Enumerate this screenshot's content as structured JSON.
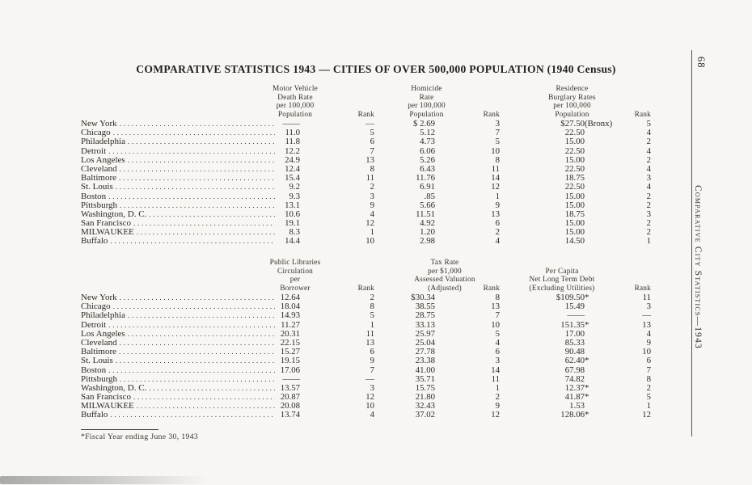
{
  "page": {
    "title": "COMPARATIVE STATISTICS 1943 — CITIES OF OVER 500,000 POPULATION (1940 Census)",
    "page_number": "68",
    "side_label": "Comparative City Statistics—1943",
    "footnote": "*Fiscal Year ending June 30, 1943"
  },
  "tables": [
    {
      "headers": [
        {
          "id": "val1",
          "lines": [
            "Motor Vehicle",
            "Death Rate",
            "per 100,000",
            "Population"
          ]
        },
        {
          "id": "rank1",
          "lines": [
            "Rank"
          ]
        },
        {
          "id": "val2",
          "lines": [
            "Homicide",
            "Rate",
            "per 100,000",
            "Population"
          ]
        },
        {
          "id": "rank2",
          "lines": [
            "Rank"
          ]
        },
        {
          "id": "val3",
          "lines": [
            "Residence",
            "Burglary Rates",
            "per 100,000",
            "Population"
          ]
        },
        {
          "id": "rank3",
          "lines": [
            "Rank"
          ]
        }
      ],
      "rows": [
        {
          "city": "New York",
          "v1": "——",
          "r1": "—",
          "v2": "$ 2.69",
          "r2": "3",
          "v3": "$27.50",
          "v3sfx": "(Bronx)",
          "r3": "5"
        },
        {
          "city": "Chicago",
          "v1": "11.0",
          "r1": "5",
          "v2": "5.12",
          "r2": "7",
          "v3": "22.50",
          "v3sfx": "",
          "r3": "4"
        },
        {
          "city": "Philadelphia",
          "v1": "11.8",
          "r1": "6",
          "v2": "4.73",
          "r2": "5",
          "v3": "15.00",
          "v3sfx": "",
          "r3": "2"
        },
        {
          "city": "Detroit",
          "v1": "12.2",
          "r1": "7",
          "v2": "6.06",
          "r2": "10",
          "v3": "22.50",
          "v3sfx": "",
          "r3": "4"
        },
        {
          "city": "Los Angeles",
          "v1": "24.9",
          "r1": "13",
          "v2": "5.26",
          "r2": "8",
          "v3": "15.00",
          "v3sfx": "",
          "r3": "2"
        },
        {
          "city": "Cleveland",
          "v1": "12.4",
          "r1": "8",
          "v2": "6.43",
          "r2": "11",
          "v3": "22.50",
          "v3sfx": "",
          "r3": "4"
        },
        {
          "city": "Baltimore",
          "v1": "15.4",
          "r1": "11",
          "v2": "11.76",
          "r2": "14",
          "v3": "18.75",
          "v3sfx": "",
          "r3": "3"
        },
        {
          "city": "St. Louis",
          "v1": "9.2",
          "r1": "2",
          "v2": "6.91",
          "r2": "12",
          "v3": "22.50",
          "v3sfx": "",
          "r3": "4"
        },
        {
          "city": "Boston",
          "v1": "9.3",
          "r1": "3",
          "v2": ".85",
          "r2": "1",
          "v3": "15.00",
          "v3sfx": "",
          "r3": "2"
        },
        {
          "city": "Pittsburgh",
          "v1": "13.1",
          "r1": "9",
          "v2": "5.66",
          "r2": "9",
          "v3": "15.00",
          "v3sfx": "",
          "r3": "2"
        },
        {
          "city": "Washington, D. C.",
          "v1": "10.6",
          "r1": "4",
          "v2": "11.51",
          "r2": "13",
          "v3": "18.75",
          "v3sfx": "",
          "r3": "3"
        },
        {
          "city": "San Francisco",
          "v1": "19.1",
          "r1": "12",
          "v2": "4.92",
          "r2": "6",
          "v3": "15.00",
          "v3sfx": "",
          "r3": "2"
        },
        {
          "city": "MILWAUKEE",
          "v1": "8.3",
          "r1": "1",
          "v2": "1.20",
          "r2": "2",
          "v3": "15.00",
          "v3sfx": "",
          "r3": "2"
        },
        {
          "city": "Buffalo",
          "v1": "14.4",
          "r1": "10",
          "v2": "2.98",
          "r2": "4",
          "v3": "14.50",
          "v3sfx": "",
          "r3": "1"
        }
      ]
    },
    {
      "headers": [
        {
          "id": "val1",
          "lines": [
            "Public Libraries",
            "Circulation",
            "per",
            "Borrower"
          ]
        },
        {
          "id": "rank1",
          "lines": [
            "Rank"
          ]
        },
        {
          "id": "val2",
          "lines": [
            "Tax Rate",
            "per $1,000",
            "Assessed Valuation",
            "(Adjusted)"
          ]
        },
        {
          "id": "rank2",
          "lines": [
            "Rank"
          ]
        },
        {
          "id": "val3",
          "lines": [
            "Per Capita",
            "Net Long Term Debt",
            "(Excluding Utilities)"
          ]
        },
        {
          "id": "rank3",
          "lines": [
            "Rank"
          ]
        }
      ],
      "rows": [
        {
          "city": "New York",
          "v1": "12.64",
          "r1": "2",
          "v2": "$30.34",
          "r2": "8",
          "v3": "$109.50",
          "v3sfx": "*",
          "r3": "11"
        },
        {
          "city": "Chicago",
          "v1": "18.04",
          "r1": "8",
          "v2": "38.55",
          "r2": "13",
          "v3": "15.49",
          "v3sfx": "",
          "r3": "3"
        },
        {
          "city": "Philadelphia",
          "v1": "14.93",
          "r1": "5",
          "v2": "28.75",
          "r2": "7",
          "v3": "——",
          "v3sfx": "",
          "r3": "—"
        },
        {
          "city": "Detroit",
          "v1": "11.27",
          "r1": "1",
          "v2": "33.13",
          "r2": "10",
          "v3": "151.35",
          "v3sfx": "*",
          "r3": "13"
        },
        {
          "city": "Los Angeles",
          "v1": "20.31",
          "r1": "11",
          "v2": "25.97",
          "r2": "5",
          "v3": "17.00",
          "v3sfx": "",
          "r3": "4"
        },
        {
          "city": "Cleveland",
          "v1": "22.15",
          "r1": "13",
          "v2": "25.04",
          "r2": "4",
          "v3": "85.33",
          "v3sfx": "",
          "r3": "9"
        },
        {
          "city": "Baltimore",
          "v1": "15.27",
          "r1": "6",
          "v2": "27.78",
          "r2": "6",
          "v3": "90.48",
          "v3sfx": "",
          "r3": "10"
        },
        {
          "city": "St. Louis",
          "v1": "19.15",
          "r1": "9",
          "v2": "23.38",
          "r2": "3",
          "v3": "62.40",
          "v3sfx": "*",
          "r3": "6"
        },
        {
          "city": "Boston",
          "v1": "17.06",
          "r1": "7",
          "v2": "41.00",
          "r2": "14",
          "v3": "67.98",
          "v3sfx": "",
          "r3": "7"
        },
        {
          "city": "Pittsburgh",
          "v1": "——",
          "r1": "—",
          "v2": "35.71",
          "r2": "11",
          "v3": "74.82",
          "v3sfx": "",
          "r3": "8"
        },
        {
          "city": "Washington, D. C.",
          "v1": "13.57",
          "r1": "3",
          "v2": "15.75",
          "r2": "1",
          "v3": "12.37",
          "v3sfx": "*",
          "r3": "2"
        },
        {
          "city": "San Francisco",
          "v1": "20.87",
          "r1": "12",
          "v2": "21.80",
          "r2": "2",
          "v3": "41.87",
          "v3sfx": "*",
          "r3": "5"
        },
        {
          "city": "MILWAUKEE",
          "v1": "20.08",
          "r1": "10",
          "v2": "32.43",
          "r2": "9",
          "v3": "1.53",
          "v3sfx": "",
          "r3": "1"
        },
        {
          "city": "Buffalo",
          "v1": "13.74",
          "r1": "4",
          "v2": "37.02",
          "r2": "12",
          "v3": "128.06",
          "v3sfx": "*",
          "r3": "12"
        }
      ]
    }
  ]
}
